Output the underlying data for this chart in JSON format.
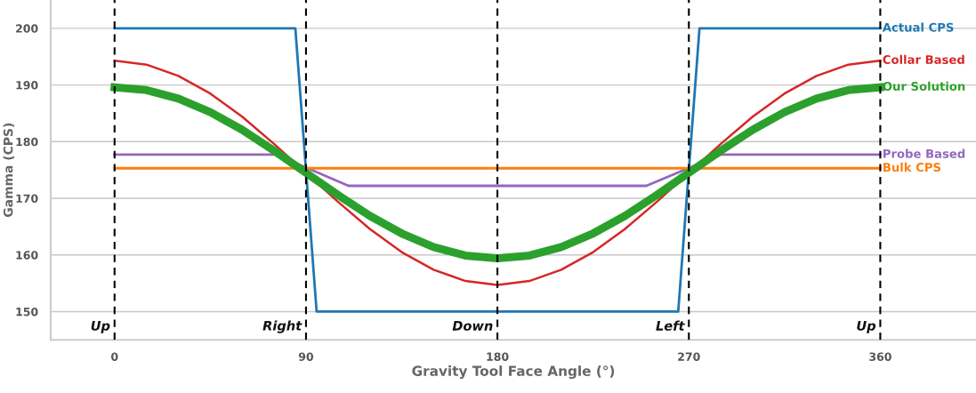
{
  "chart_data": {
    "type": "line",
    "xlabel": "Gravity Tool Face Angle (°)",
    "ylabel": "Gamma (CPS)",
    "x": [
      0,
      15,
      30,
      45,
      60,
      75,
      90,
      105,
      120,
      135,
      150,
      165,
      180,
      195,
      210,
      225,
      240,
      255,
      270,
      285,
      300,
      315,
      330,
      345,
      360
    ],
    "series": [
      {
        "name": "Actual CPS",
        "color": "#1f77b4",
        "x": [
          0,
          85,
          95,
          265,
          275,
          360
        ],
        "values": [
          200,
          200,
          150,
          150,
          200,
          200
        ]
      },
      {
        "name": "Collar Based",
        "color": "#d62728",
        "values": [
          194.3,
          193.6,
          191.6,
          188.5,
          184.4,
          179.6,
          174.5,
          169.4,
          164.6,
          160.5,
          157.4,
          155.4,
          154.7,
          155.4,
          157.4,
          160.5,
          164.6,
          169.4,
          174.5,
          179.6,
          184.4,
          188.5,
          191.6,
          193.6,
          194.3
        ]
      },
      {
        "name": "Our Solution",
        "color": "#2ca02c",
        "values": [
          189.6,
          189.1,
          187.6,
          185.2,
          182.1,
          178.4,
          174.5,
          170.6,
          166.9,
          163.8,
          161.4,
          159.9,
          159.4,
          159.9,
          161.4,
          163.8,
          166.9,
          170.6,
          174.5,
          178.4,
          182.1,
          185.2,
          187.6,
          189.1,
          189.6
        ]
      },
      {
        "name": "Probe Based",
        "color": "#9467bd",
        "x": [
          0,
          76,
          110,
          250,
          285,
          360
        ],
        "values": [
          177.7,
          177.7,
          172.2,
          172.2,
          177.7,
          177.7
        ]
      },
      {
        "name": "Bulk CPS",
        "color": "#ff7f0e",
        "x": [
          0,
          360
        ],
        "values": [
          175.3,
          175.3
        ]
      }
    ],
    "xlim": [
      -30,
      405
    ],
    "ylim": [
      145,
      205
    ],
    "xticks": [
      0,
      90,
      180,
      270,
      360
    ],
    "yticks": [
      150,
      160,
      170,
      180,
      190,
      200
    ],
    "grid": "y",
    "legend": false,
    "marker": "none",
    "line_style": "solid",
    "ref_lines": [
      {
        "axis": "x",
        "value": 0,
        "label": "Up",
        "color": "#000000",
        "line_style": "dashed"
      },
      {
        "axis": "x",
        "value": 90,
        "label": "Right",
        "color": "#000000",
        "line_style": "dashed"
      },
      {
        "axis": "x",
        "value": 180,
        "label": "Down",
        "color": "#000000",
        "line_style": "dashed"
      },
      {
        "axis": "x",
        "value": 270,
        "label": "Left",
        "color": "#000000",
        "line_style": "dashed"
      },
      {
        "axis": "x",
        "value": 360,
        "label": "Up",
        "color": "#000000",
        "line_style": "dashed"
      }
    ]
  }
}
